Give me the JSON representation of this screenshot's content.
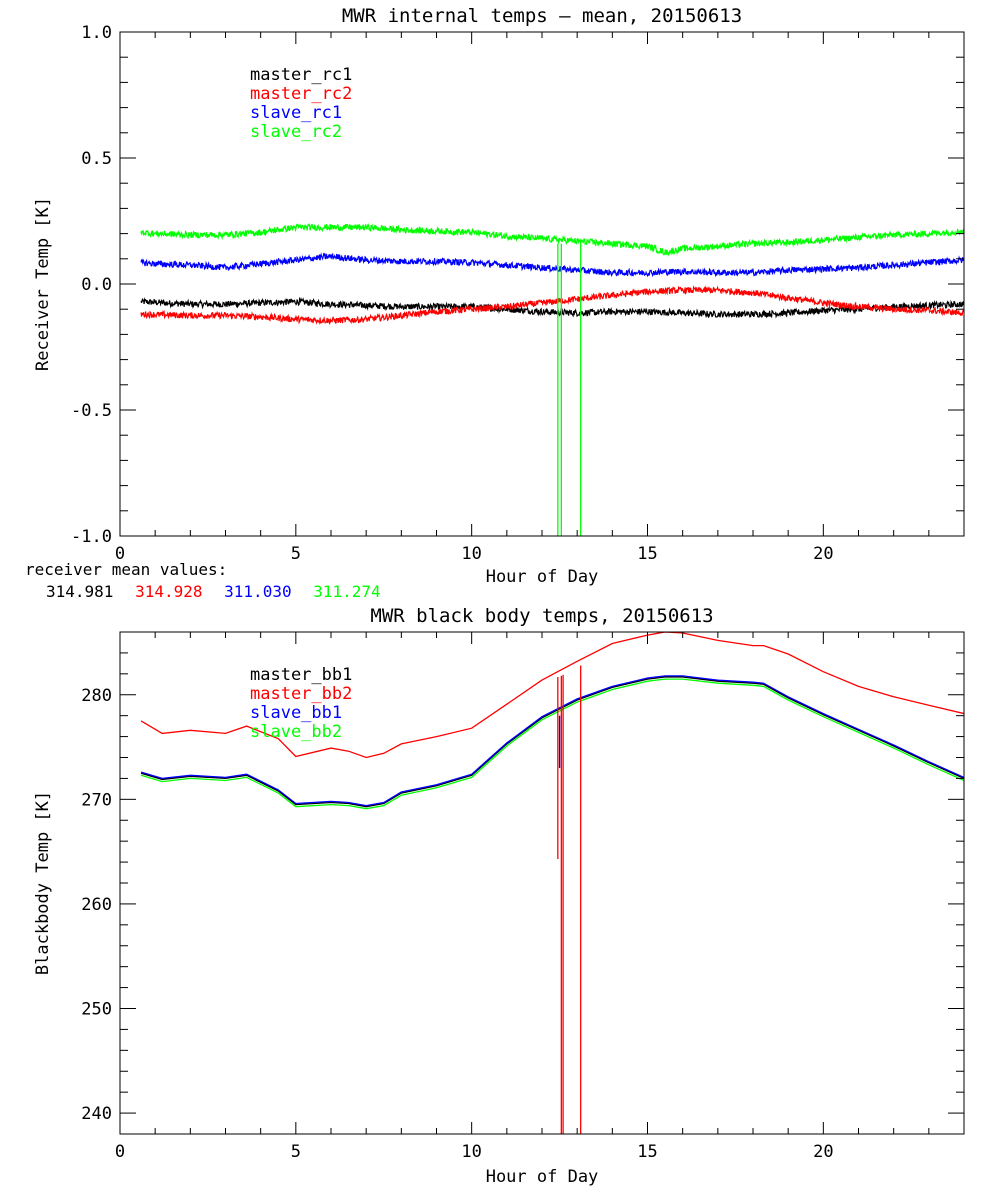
{
  "colors": {
    "master_1": "#000000",
    "master_2": "#ff0000",
    "slave_1": "#0000ff",
    "slave_2": "#00ff00"
  },
  "mean_values": {
    "label": "receiver mean values:",
    "values": [
      "314.981",
      "314.928",
      "311.030",
      "311.274"
    ]
  },
  "chart_data": [
    {
      "type": "line",
      "title": "MWR internal temps — mean, 20150613",
      "xlabel": "Hour of Day",
      "ylabel": "Receiver Temp [K]",
      "xlim": [
        0,
        24
      ],
      "ylim": [
        -1.0,
        1.0
      ],
      "xticks": [
        0,
        5,
        10,
        15,
        20
      ],
      "xtick_labels": [
        "0",
        "5",
        "10",
        "15",
        "20"
      ],
      "yticks": [
        1.0,
        0.5,
        0.0,
        -0.5,
        -1.0
      ],
      "ytick_labels": [
        "1.0",
        "0.5",
        "0.0",
        "-0.5",
        "-1.0"
      ],
      "legend": "top-left",
      "noise_band": 0.025,
      "series": [
        {
          "name": "master_rc1",
          "color": "#000000",
          "x": [
            0.6,
            2,
            3,
            5,
            6,
            7,
            8,
            9,
            10,
            11,
            12,
            13,
            14,
            15,
            16,
            17,
            18,
            19,
            20,
            21,
            22,
            23,
            24
          ],
          "values": [
            -0.07,
            -0.08,
            -0.08,
            -0.07,
            -0.08,
            -0.085,
            -0.09,
            -0.09,
            -0.09,
            -0.1,
            -0.11,
            -0.115,
            -0.11,
            -0.11,
            -0.115,
            -0.12,
            -0.12,
            -0.115,
            -0.105,
            -0.1,
            -0.09,
            -0.085,
            -0.08
          ]
        },
        {
          "name": "master_rc2",
          "color": "#ff0000",
          "x": [
            0.6,
            2,
            3,
            4,
            5,
            6,
            7,
            8,
            9,
            10,
            11,
            12,
            13,
            14,
            15,
            16,
            17,
            18,
            19,
            20,
            21,
            22,
            23,
            24
          ],
          "values": [
            -0.12,
            -0.125,
            -0.125,
            -0.13,
            -0.14,
            -0.145,
            -0.14,
            -0.125,
            -0.11,
            -0.1,
            -0.09,
            -0.075,
            -0.06,
            -0.045,
            -0.03,
            -0.025,
            -0.025,
            -0.035,
            -0.055,
            -0.075,
            -0.09,
            -0.1,
            -0.105,
            -0.115
          ]
        },
        {
          "name": "slave_rc1",
          "color": "#0000ff",
          "x": [
            0.6,
            1,
            2,
            3,
            4,
            5,
            6,
            7,
            8,
            9,
            10,
            11,
            12,
            13,
            14,
            15,
            16,
            17,
            18,
            19,
            20,
            21,
            22,
            23,
            24
          ],
          "values": [
            0.085,
            0.08,
            0.075,
            0.065,
            0.08,
            0.095,
            0.11,
            0.095,
            0.09,
            0.09,
            0.085,
            0.075,
            0.065,
            0.055,
            0.045,
            0.045,
            0.05,
            0.045,
            0.045,
            0.055,
            0.06,
            0.065,
            0.075,
            0.085,
            0.095
          ]
        },
        {
          "name": "slave_rc2",
          "color": "#00ff00",
          "x": [
            0.6,
            1,
            2,
            3,
            4,
            5,
            6,
            7,
            8,
            9,
            10,
            11,
            12,
            13,
            14,
            15,
            15.5,
            16,
            17,
            18,
            19,
            20,
            21,
            22,
            23,
            24
          ],
          "values": [
            0.205,
            0.2,
            0.195,
            0.195,
            0.205,
            0.225,
            0.225,
            0.225,
            0.215,
            0.21,
            0.205,
            0.19,
            0.18,
            0.17,
            0.16,
            0.15,
            0.125,
            0.14,
            0.15,
            0.16,
            0.165,
            0.175,
            0.185,
            0.195,
            0.2,
            0.21
          ]
        }
      ],
      "spikes": [
        {
          "series": "slave_rc2",
          "color": "#00ff00",
          "x": 12.45,
          "from": 0.16,
          "to": -1.0
        },
        {
          "series": "slave_rc2",
          "color": "#00ff00",
          "x": 12.55,
          "from": 0.16,
          "to": -1.0
        },
        {
          "series": "slave_rc2",
          "color": "#00ff00",
          "x": 13.1,
          "from": 0.16,
          "to": -1.0
        }
      ]
    },
    {
      "type": "line",
      "title": "MWR black body temps, 20150613",
      "xlabel": "Hour of Day",
      "ylabel": "Blackbody Temp [K]",
      "xlim": [
        0,
        24
      ],
      "ylim": [
        238,
        286
      ],
      "xticks": [
        0,
        5,
        10,
        15,
        20
      ],
      "xtick_labels": [
        "0",
        "5",
        "10",
        "15",
        "20"
      ],
      "yticks": [
        280,
        270,
        260,
        250,
        240
      ],
      "ytick_labels": [
        "280",
        "270",
        "260",
        "250",
        "240"
      ],
      "legend": "top-left",
      "series": [
        {
          "name": "master_bb1",
          "color": "#000000",
          "x": [
            0.6,
            1.2,
            2,
            3,
            3.6,
            4.5,
            5,
            6,
            6.5,
            7,
            7.5,
            8,
            9,
            10,
            11,
            12,
            13,
            14,
            15,
            15.5,
            16,
            17,
            18,
            18.3,
            19,
            20,
            21,
            22,
            23,
            24
          ],
          "values": [
            272.5,
            271.9,
            272.2,
            272.0,
            272.3,
            270.8,
            269.5,
            269.7,
            269.6,
            269.3,
            269.6,
            270.6,
            271.3,
            272.3,
            275.3,
            277.8,
            279.5,
            280.7,
            281.5,
            281.7,
            281.7,
            281.3,
            281.1,
            281.0,
            279.7,
            278.1,
            276.6,
            275.1,
            273.5,
            272.0
          ]
        },
        {
          "name": "master_bb2",
          "color": "#ff0000",
          "x": [
            0.6,
            1.2,
            2,
            3,
            3.6,
            4.5,
            5,
            6,
            6.5,
            7,
            7.5,
            8,
            9,
            10,
            11,
            12,
            13,
            14,
            15,
            15.5,
            16,
            17,
            18,
            18.3,
            19,
            20,
            21,
            22,
            23,
            24
          ],
          "values": [
            277.5,
            276.3,
            276.6,
            276.3,
            277.0,
            275.8,
            274.1,
            274.9,
            274.6,
            274.0,
            274.4,
            275.3,
            276.0,
            276.8,
            279.1,
            281.4,
            283.2,
            284.9,
            285.7,
            286.0,
            285.9,
            285.2,
            284.7,
            284.7,
            283.9,
            282.2,
            280.8,
            279.8,
            279.0,
            278.2
          ]
        },
        {
          "name": "slave_bb1",
          "color": "#0000ff",
          "x": [
            0.6,
            1.2,
            2,
            3,
            3.6,
            4.5,
            5,
            6,
            6.5,
            7,
            7.5,
            8,
            9,
            10,
            11,
            12,
            13,
            14,
            15,
            15.5,
            16,
            17,
            18,
            18.3,
            19,
            20,
            21,
            22,
            23,
            24
          ],
          "values": [
            272.6,
            272.0,
            272.3,
            272.1,
            272.4,
            270.9,
            269.6,
            269.8,
            269.7,
            269.4,
            269.7,
            270.7,
            271.4,
            272.4,
            275.4,
            277.9,
            279.6,
            280.8,
            281.6,
            281.8,
            281.8,
            281.4,
            281.2,
            281.1,
            279.8,
            278.2,
            276.7,
            275.2,
            273.6,
            272.1
          ]
        },
        {
          "name": "slave_bb2",
          "color": "#00ff00",
          "x": [
            0.6,
            1.2,
            2,
            3,
            3.6,
            4.5,
            5,
            6,
            6.5,
            7,
            7.5,
            8,
            9,
            10,
            11,
            12,
            13,
            14,
            15,
            15.5,
            16,
            17,
            18,
            18.3,
            19,
            20,
            21,
            22,
            23,
            24
          ],
          "values": [
            272.3,
            271.7,
            272.0,
            271.8,
            272.1,
            270.6,
            269.3,
            269.5,
            269.4,
            269.1,
            269.4,
            270.4,
            271.1,
            272.1,
            275.1,
            277.6,
            279.3,
            280.5,
            281.3,
            281.5,
            281.5,
            281.1,
            280.9,
            280.8,
            279.5,
            277.9,
            276.4,
            274.9,
            273.3,
            271.8
          ]
        }
      ],
      "spikes": [
        {
          "series": "master_bb2",
          "color": "#ff0000",
          "x": 12.45,
          "from": 281.7,
          "to": 264.3
        },
        {
          "series": "master_bb2",
          "color": "#ff0000",
          "x": 12.55,
          "from": 281.8,
          "to": 238.0
        },
        {
          "series": "master_bb2",
          "color": "#ff0000",
          "x": 12.6,
          "from": 281.9,
          "to": 238.0
        },
        {
          "series": "slave_bb1",
          "color": "#0000ff",
          "x": 12.5,
          "from": 278.0,
          "to": 273.0
        },
        {
          "series": "master_bb2",
          "color": "#ff0000",
          "x": 13.1,
          "from": 282.8,
          "to": 238.0
        }
      ]
    }
  ]
}
